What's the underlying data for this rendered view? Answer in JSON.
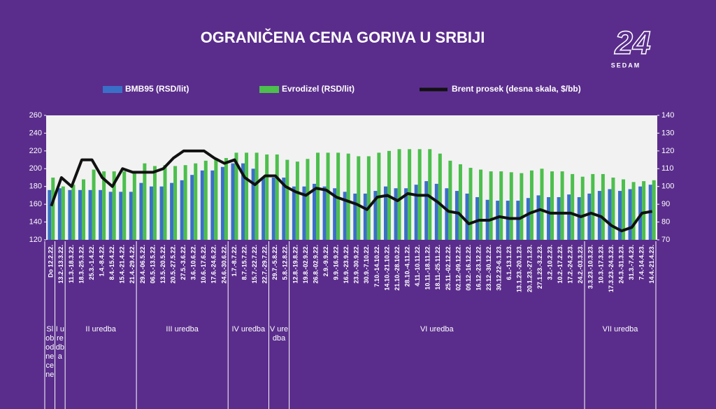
{
  "chart_data": {
    "type": "bar",
    "title": "OGRANIČENA CENA GORIVA U SRBIJI",
    "categories": [
      "Do 12.2.22.",
      "13.2.-13.3.22.",
      "11.3.-18.3.22.",
      "18.3.-25.3.22.",
      "25.3.-1.4.22.",
      "1.4.-8.4.22.",
      "8.4.-15.4.22.",
      "15.4.-21.4.22.",
      "21.4.-29.4.22.",
      "29.4.-06.5.22.",
      "06.5.-13.5.22.",
      "13.5.-20.5.22.",
      "20.5.-27.5.22.",
      "27.5.-3.6.22.",
      "3.6.-10.6.22.",
      "10.6.-17.6.22.",
      "17.6.-24.6.22.",
      "24.6.-30.6.22.",
      "1.7.-8.7.22.",
      "8.7.-15.7.22.",
      "15.7.-22.7.22.",
      "22.7.-29.7.22.",
      "29.7.-5.8.22.",
      "5.8.-12.8.22.",
      "12.8.-19.8.22.",
      "19.8.-02.9.22.",
      "26.8.-02.9.22.",
      "2.9.-9.9.22.",
      "9.9.-16.9.22.",
      "16.9.-23.9.22.",
      "23.9.-30.9.22.",
      "30.9.-7.10.22.",
      "7.10.-14.10.22.",
      "14.10.-21.10.22.",
      "21.10.-28.10.22.",
      "28.10.-4.11.22.",
      "4.11.-10.11.22.",
      "10.11.-18.11.22.",
      "18.11.-25.11.22.",
      "25.11.-02.12.22.",
      "02.12.-09.12.22.",
      "09.12.-16.12.22.",
      "16.12.-23.12.22.",
      "23.12.-30.12.22.",
      "30.12.22-6.1.23.",
      "6.1.-13.1.23.",
      "13.1.23.-20.1.23.",
      "20.1.23.-27.1.23.",
      "27.1.23.-3.2.23.",
      "3.2.-10.2.23.",
      "10.2.-17.2.23.",
      "17.2.-24.2.23.",
      "24.2.-03.3.23.",
      "3.3.23.-10.3.23.",
      "10.3.-17.3.23.",
      "17.3.23.-24.3.23.",
      "24.3.-31.3.23.",
      "31.3.-7.4.23.",
      "7.4.-14.4.23.",
      "14.4.-21.4.23."
    ],
    "series": [
      {
        "name": "BMB95 (RSD/lit)",
        "color": "#3a6fc8",
        "type": "bar",
        "values": [
          176,
          178,
          176,
          176,
          176,
          176,
          174,
          174,
          174,
          184,
          180,
          180,
          184,
          187,
          193,
          198,
          198,
          202,
          206,
          206,
          200,
          190,
          190,
          190,
          180,
          180,
          183,
          180,
          178,
          174,
          172,
          172,
          175,
          180,
          178,
          178,
          182,
          186,
          183,
          178,
          175,
          172,
          168,
          165,
          164,
          164,
          164,
          167,
          170,
          168,
          168,
          171,
          168,
          172,
          175,
          177,
          175,
          177,
          180,
          182
        ]
      },
      {
        "name": "Evrodizel (RSD/lit)",
        "color": "#4cbf4c",
        "type": "bar",
        "values": [
          190,
          180,
          182,
          188,
          199,
          197,
          197,
          197,
          197,
          206,
          203,
          204,
          203,
          204,
          206,
          209,
          212,
          212,
          218,
          218,
          218,
          216,
          216,
          210,
          208,
          211,
          218,
          218,
          218,
          217,
          214,
          214,
          218,
          220,
          222,
          222,
          222,
          222,
          217,
          209,
          205,
          201,
          199,
          197,
          197,
          196,
          195,
          198,
          200,
          197,
          197,
          194,
          191,
          194,
          194,
          190,
          188,
          185,
          186,
          187
        ]
      },
      {
        "name": "Brent prosek  (desna skala, $/bb)",
        "color": "#111111",
        "type": "line",
        "axis": "y2",
        "values": [
          89,
          105,
          100,
          115,
          115,
          105,
          100,
          110,
          108,
          108,
          108,
          110,
          116,
          120,
          120,
          120,
          116,
          113,
          115,
          105,
          101,
          106,
          106,
          100,
          97,
          95,
          99,
          98,
          94,
          92,
          90,
          87,
          94,
          95,
          92,
          96,
          95,
          95,
          91,
          86,
          85,
          79,
          81,
          81,
          83,
          82,
          82,
          85,
          87,
          85,
          85,
          85,
          83,
          85,
          83,
          78,
          75,
          77,
          85,
          86
        ]
      }
    ],
    "ylim": [
      120,
      260
    ],
    "yticks": [
      120,
      140,
      160,
      180,
      200,
      220,
      240,
      260
    ],
    "y2lim": [
      70,
      140
    ],
    "y2ticks": [
      70,
      80,
      90,
      100,
      110,
      120,
      130,
      140
    ],
    "grid": false,
    "legend": "top",
    "periods": [
      "Slobodne cene",
      "I uredba",
      "II uredba",
      "III uredba",
      "IV uredba",
      "V uredba",
      "VI uredba",
      "VII uredba"
    ]
  },
  "logo": {
    "number": "24",
    "name": "SEDAM"
  }
}
